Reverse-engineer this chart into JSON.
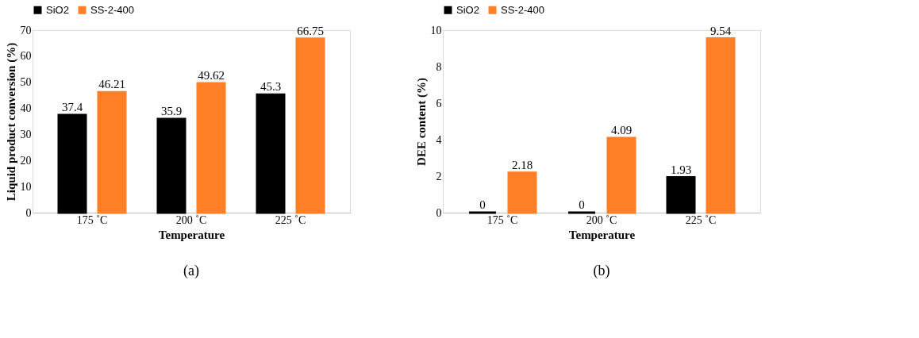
{
  "chart_data": [
    {
      "type": "bar",
      "xlabel": "Temperature",
      "ylabel": "Liquid product conversion (%)",
      "categories": [
        "175 ˚C",
        "200 ˚C",
        "225 ˚C"
      ],
      "series": [
        {
          "name": "SiO2",
          "color": "#000000",
          "values": [
            37.4,
            35.9,
            45.3
          ]
        },
        {
          "name": "SS-2-400",
          "color": "#ff7f27",
          "values": [
            46.21,
            49.62,
            66.75
          ]
        }
      ],
      "ylim": [
        0,
        70
      ],
      "yticks": [
        0,
        10,
        20,
        30,
        40,
        50,
        60,
        70
      ],
      "data_labels": true,
      "legend": "top",
      "grid": false,
      "annotations": [
        "(a)"
      ]
    },
    {
      "type": "bar",
      "xlabel": "Temperature",
      "ylabel": "DEE content (%)",
      "categories": [
        "175 ˚C",
        "200 ˚C",
        "225 ˚C"
      ],
      "series": [
        {
          "name": "SiO2",
          "color": "#000000",
          "values": [
            0,
            0,
            1.93
          ]
        },
        {
          "name": "SS-2-400",
          "color": "#ff7f27",
          "values": [
            2.18,
            4.09,
            9.54
          ]
        }
      ],
      "ylim": [
        0,
        10
      ],
      "yticks": [
        0,
        2,
        4,
        6,
        8,
        10
      ],
      "data_labels": true,
      "legend": "top",
      "grid": false,
      "annotations": [
        "(b)"
      ]
    }
  ]
}
